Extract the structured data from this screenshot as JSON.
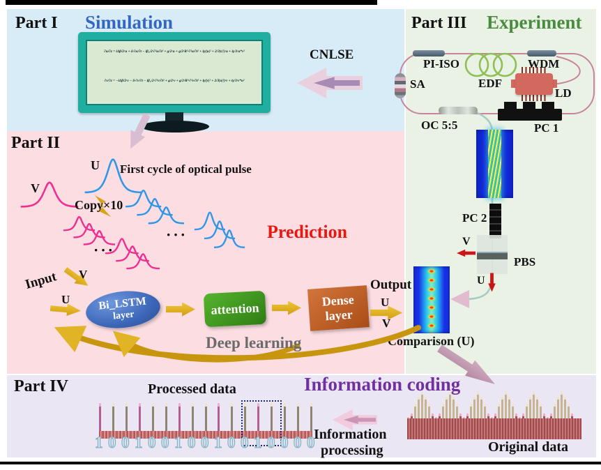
{
  "part1": {
    "label": "Part I",
    "title": "Simulation",
    "cnlse": "CNLSE",
    "eq1": "∂u/∂z = iΔβ/2·u + δ·∂u/∂t − iβ₂/2·∂²u/∂t² + g/2·u + g/2·R²·∂²u/∂t² + iγ(|u|² + 2/3|v|²)·u + iγ/3·u*v²",
    "eq2": "∂v/∂z = −iΔβ/2·v − δ·∂v/∂t − iβ₂/2·∂²v/∂t² + g/2·v + g/2·R²·∂²v/∂t² + iγ(|v|² + 2/3|u|²)·v + iγ/3·v*u²"
  },
  "part2": {
    "label": "Part II",
    "title": "Prediction",
    "u": "U",
    "v": "V",
    "first_cycle": "First cycle of optical pulse",
    "copy": "Copy×10",
    "dots": "···",
    "input": "Input",
    "input_v": "V",
    "input_u": "U",
    "bilstm_line1": "Bi_LSTM",
    "bilstm_line2": "layer",
    "attention": "attention",
    "dense_line1": "Dense",
    "dense_line2": "layer",
    "output": "Output",
    "output_u": "U",
    "output_v": "V",
    "deep_learning": "Deep learning"
  },
  "part3": {
    "label": "Part III",
    "title": "Experiment",
    "pi_iso": "PI-ISO",
    "wdm": "WDM",
    "sa": "SA",
    "edf": "EDF",
    "ld": "LD",
    "oc": "OC 5:5",
    "pc1": "PC 1",
    "pc2": "PC 2",
    "pbs": "PBS",
    "v": "V",
    "u": "U",
    "comparison": "Comparison (U)"
  },
  "part4": {
    "label": "Part IV",
    "title": "Information coding",
    "processed": "Processed data",
    "original": "Original data",
    "processing_line1": "Information",
    "processing_line2": "processing",
    "binary": "10010010010010000",
    "original_groups": 6,
    "original_group_pattern": [
      0.18,
      0.3,
      0.62,
      0.85,
      1,
      0.85,
      0.62,
      0.3
    ]
  },
  "colors": {
    "simulation_title": "#3467c4",
    "experiment_title": "#4a8c3f",
    "prediction_title": "#ea1610",
    "coding_title": "#7030a0",
    "part1_bg": "#d7ecf6",
    "part2_bg": "#fbdde2",
    "part3_bg": "#eaf2e6",
    "part4_bg": "#ebe6f3",
    "pulse_u": "#2f96e8",
    "pulse_v": "#ef2f92"
  }
}
